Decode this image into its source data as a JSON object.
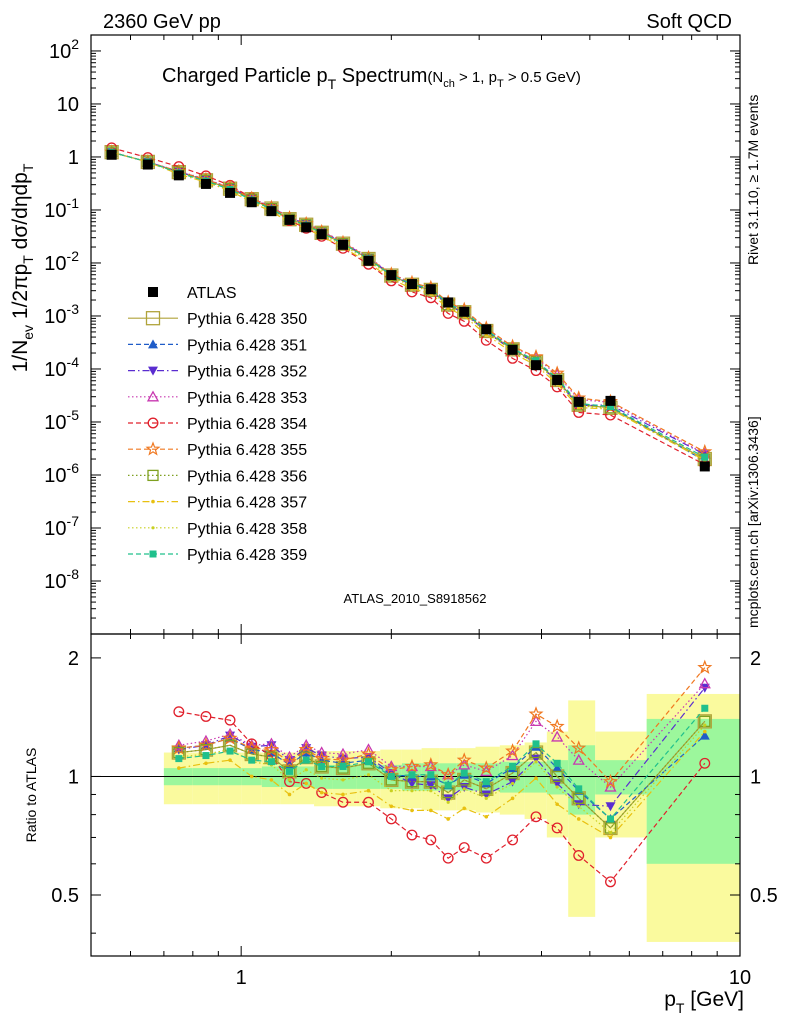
{
  "header": {
    "left": "2360 GeV pp",
    "right": "Soft QCD"
  },
  "side": {
    "top": "Rivet 3.1.10, ≥ 1.7M events",
    "bottom": "mcplots.cern.ch [arXiv:1306.3436]"
  },
  "chart_data": [
    {
      "type": "line",
      "title_main": "Charged Particle p",
      "title_main_sub": "T",
      "title_main_after": " Spectrum",
      "title_cond_1": "(N",
      "title_cond_sub_1": "ch",
      "title_cond_2": " > 1, p",
      "title_cond_sub_2": "T",
      "title_cond_3": " > 0.5 GeV)",
      "ylabel": "1/N_ev 1/2πp_T dσ/dηdp_T",
      "xlabel": "p_T [GeV]",
      "analysis": "ATLAS_2010_S8918562",
      "xscale": "log",
      "yscale": "log",
      "xlim": [
        0.5,
        10
      ],
      "ylim": [
        1e-09,
        200
      ],
      "x_ticklabels": [
        "1",
        "10"
      ],
      "y_ticklabels": [
        "10^-8",
        "10^-7",
        "10^-6",
        "10^-5",
        "10^-4",
        "10^-3",
        "10^-2",
        "10^-1",
        "1",
        "10",
        "10^2"
      ],
      "x": [
        0.55,
        0.65,
        0.75,
        0.85,
        0.95,
        1.05,
        1.15,
        1.25,
        1.35,
        1.45,
        1.6,
        1.8,
        2.0,
        2.2,
        2.4,
        2.6,
        2.8,
        3.1,
        3.5,
        3.9,
        4.3,
        4.75,
        5.5,
        8.5
      ],
      "atlas": [
        1.1,
        0.72,
        0.45,
        0.31,
        0.21,
        0.14,
        0.095,
        0.065,
        0.047,
        0.035,
        0.022,
        0.011,
        0.0059,
        0.004,
        0.0032,
        0.0018,
        0.0012,
        0.00056,
        0.00023,
        0.000118,
        6.2e-05,
        2.4e-05,
        2.5e-05,
        1.45e-06
      ],
      "legend": [
        {
          "name": "ATLAS",
          "color": "#000000",
          "marker": "square-filled",
          "dash": "none"
        },
        {
          "name": "Pythia 6.428 350",
          "color": "#b0a33a",
          "marker": "square-open-large",
          "dash": "solid"
        },
        {
          "name": "Pythia 6.428 351",
          "color": "#1f5cc8",
          "marker": "triangle-up",
          "dash": "dashed"
        },
        {
          "name": "Pythia 6.428 352",
          "color": "#5a2dd0",
          "marker": "triangle-down",
          "dash": "dashdot"
        },
        {
          "name": "Pythia 6.428 353",
          "color": "#c838b0",
          "marker": "triangle-open",
          "dash": "dotted"
        },
        {
          "name": "Pythia 6.428 354",
          "color": "#e0202c",
          "marker": "circle-open",
          "dash": "dashed"
        },
        {
          "name": "Pythia 6.428 355",
          "color": "#f07820",
          "marker": "star",
          "dash": "dashed"
        },
        {
          "name": "Pythia 6.428 356",
          "color": "#7fa020",
          "marker": "square-open",
          "dash": "dotted"
        },
        {
          "name": "Pythia 6.428 357",
          "color": "#e8c010",
          "marker": "dash-dot",
          "dash": "dashdot"
        },
        {
          "name": "Pythia 6.428 358",
          "color": "#c8d020",
          "marker": "dot",
          "dash": "dotted"
        },
        {
          "name": "Pythia 6.428 359",
          "color": "#20c08c",
          "marker": "square-filled-small",
          "dash": "dashed"
        }
      ],
      "ratios": [
        [
          1.15,
          1.17,
          1.2,
          1.14,
          1.12,
          1.03,
          1.12,
          1.06,
          1.05,
          1.08,
          0.98,
          0.97,
          0.97,
          0.91,
          0.98,
          0.93,
          1.02,
          1.15,
          1.0,
          0.88,
          0.74,
          1.38
        ],
        [
          1.18,
          1.2,
          1.25,
          1.17,
          1.15,
          1.07,
          1.15,
          1.1,
          1.08,
          1.1,
          1.01,
          1.0,
          1.0,
          0.95,
          1.01,
          0.96,
          1.05,
          1.19,
          1.05,
          0.92,
          0.78,
          1.27
        ],
        [
          1.17,
          1.2,
          1.27,
          1.19,
          1.2,
          1.1,
          1.18,
          1.13,
          1.11,
          1.12,
          1.02,
          0.96,
          0.95,
          0.88,
          0.94,
          0.9,
          0.97,
          1.11,
          0.96,
          0.85,
          0.84,
          1.68
        ],
        [
          1.2,
          1.23,
          1.28,
          1.2,
          1.21,
          1.12,
          1.2,
          1.15,
          1.14,
          1.17,
          1.06,
          1.06,
          1.06,
          1.01,
          1.07,
          1.03,
          1.13,
          1.38,
          1.26,
          1.1,
          0.94,
          1.72
        ],
        [
          1.46,
          1.42,
          1.39,
          1.21,
          1.13,
          0.97,
          0.96,
          0.91,
          0.86,
          0.86,
          0.78,
          0.71,
          0.69,
          0.62,
          0.66,
          0.62,
          0.69,
          0.79,
          0.74,
          0.63,
          0.54,
          1.08
        ],
        [
          1.18,
          1.2,
          1.25,
          1.18,
          1.17,
          1.09,
          1.17,
          1.11,
          1.1,
          1.14,
          1.04,
          1.06,
          1.07,
          1.01,
          1.1,
          1.05,
          1.16,
          1.44,
          1.34,
          1.18,
          0.97,
          1.89
        ],
        [
          1.15,
          1.17,
          1.2,
          1.14,
          1.12,
          1.03,
          1.12,
          1.06,
          1.05,
          1.08,
          0.98,
          0.97,
          0.97,
          0.91,
          0.98,
          0.93,
          1.02,
          1.15,
          1.0,
          0.88,
          0.74,
          1.38
        ],
        [
          1.05,
          1.08,
          1.1,
          1.0,
          0.98,
          0.9,
          0.96,
          0.91,
          0.9,
          0.92,
          0.84,
          0.82,
          0.82,
          0.78,
          0.83,
          0.79,
          0.88,
          0.99,
          0.85,
          0.78,
          0.7,
          1.3
        ],
        [
          1.12,
          1.14,
          1.17,
          1.09,
          1.07,
          0.98,
          1.04,
          0.99,
          0.98,
          1.01,
          0.92,
          0.92,
          0.92,
          0.86,
          0.93,
          0.88,
          0.96,
          1.09,
          0.94,
          0.84,
          0.72,
          1.35
        ],
        [
          1.11,
          1.13,
          1.16,
          1.1,
          1.09,
          1.03,
          1.1,
          1.06,
          1.06,
          1.09,
          1.0,
          1.01,
          1.01,
          0.95,
          1.02,
          0.97,
          1.06,
          1.21,
          1.08,
          0.93,
          0.78,
          1.49
        ]
      ],
      "ratio_panel": {
        "ylabel": "Ratio to ATLAS",
        "ylim": [
          0.35,
          2.3
        ],
        "yscale": "log",
        "y_ticklabels": [
          "0.5",
          "1",
          "2"
        ],
        "stat_band": [
          0.05,
          0.05,
          0.05,
          0.05,
          0.06,
          0.06,
          0.06,
          0.07,
          0.07,
          0.07,
          0.07,
          0.08,
          0.08,
          0.08,
          0.08,
          0.08,
          0.09,
          0.09,
          0.1,
          0.2,
          0.1,
          0.4
        ],
        "total_band": [
          0.15,
          0.15,
          0.15,
          0.15,
          0.15,
          0.15,
          0.15,
          0.16,
          0.16,
          0.16,
          0.17,
          0.17,
          0.18,
          0.18,
          0.18,
          0.19,
          0.2,
          0.22,
          0.3,
          0.56,
          0.3,
          0.62
        ]
      }
    }
  ],
  "colors": {
    "stat_band": "#9cf79c",
    "syst_band": "#fafa9e",
    "watermark": "#8a8a8a"
  }
}
